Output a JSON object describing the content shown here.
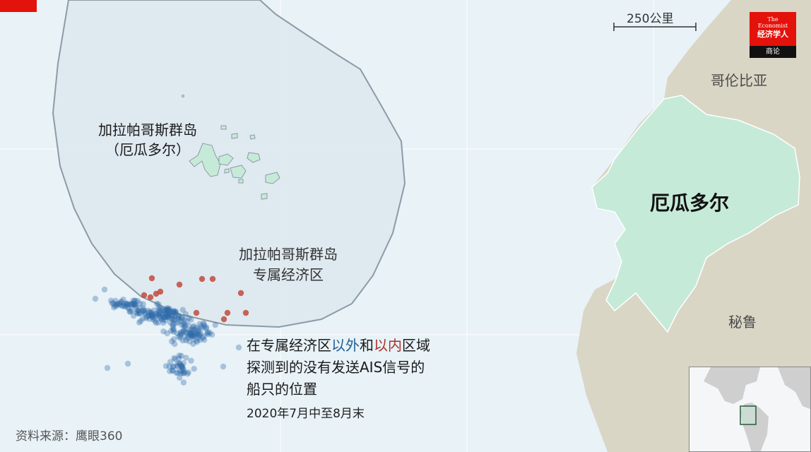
{
  "map": {
    "countries": {
      "colombia": "哥伦比亚",
      "ecuador": "厄瓜多尔",
      "peru": "秘鲁"
    },
    "galapagos": {
      "name": "加拉帕哥斯群岛",
      "country": "（厄瓜多尔）"
    },
    "eez": {
      "line1": "加拉帕哥斯群岛",
      "line2": "专属经济区"
    },
    "scale": "250公里"
  },
  "legend": {
    "part1": "在专属经济区",
    "outside": "以外",
    "part2": "和",
    "inside": "以内",
    "part3": "区域",
    "line2": "探测到的没有发送AIS信号的",
    "line3": "船只的位置",
    "date": "2020年7月中至8月末"
  },
  "source": "资料来源：鹰眼360",
  "logo": {
    "line1": "The",
    "line2": "Economist",
    "line3": "经济学人",
    "bottom": "商论"
  },
  "colors": {
    "ocean": "#e8f2f7",
    "eez_fill": "#dde7ef",
    "ecuador": "#c6ead8",
    "neighbors": "#d9d6c6",
    "outside_dots": "#2d6aa8",
    "inside_dots": "#c0402f",
    "brand_red": "#e3120b"
  }
}
